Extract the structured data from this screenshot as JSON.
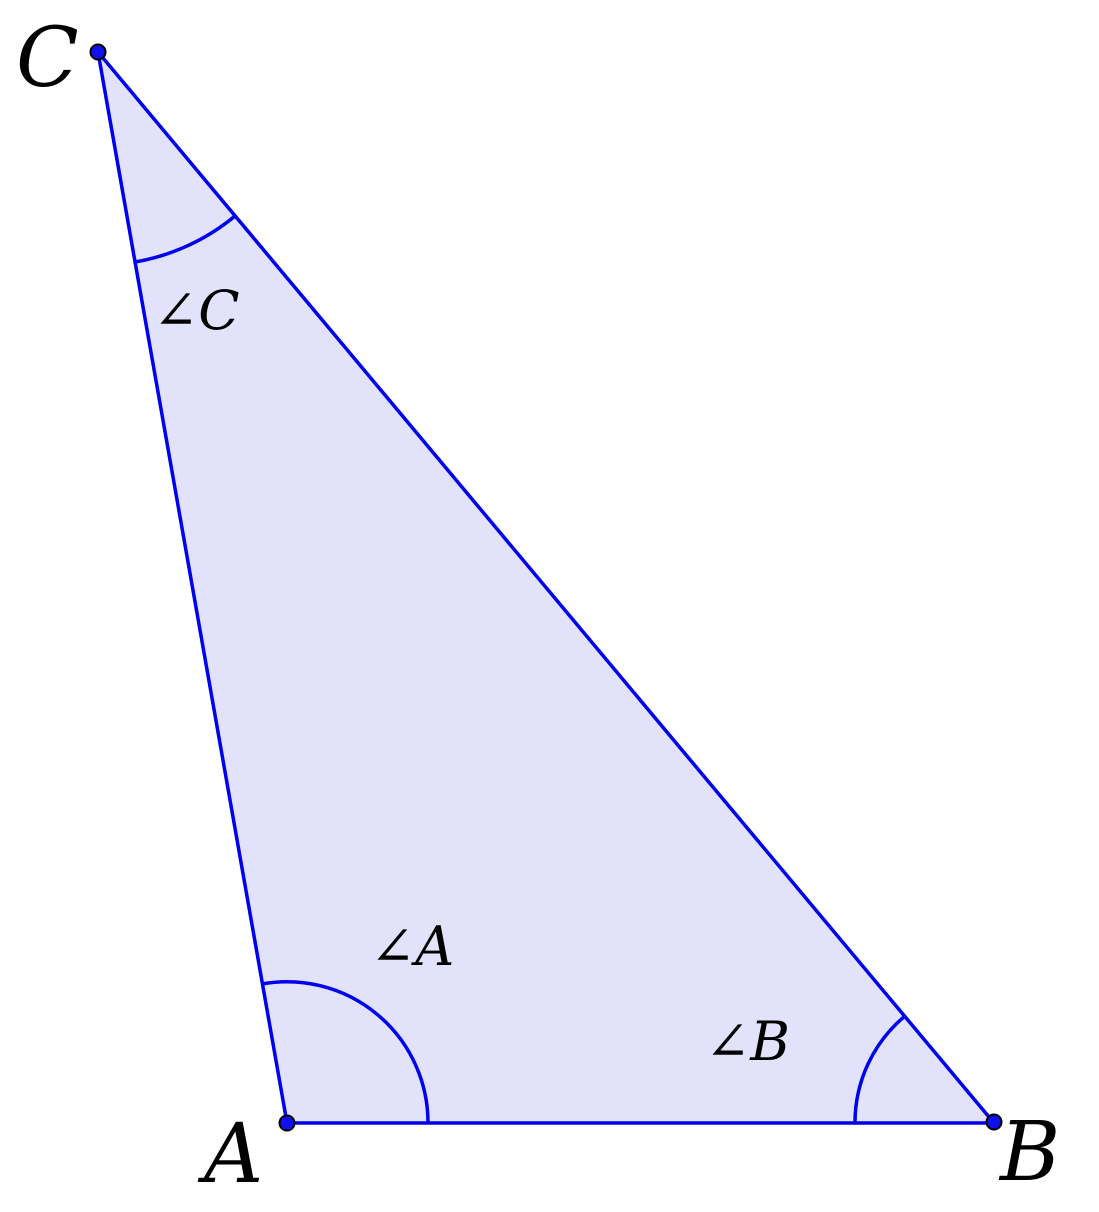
{
  "diagram": {
    "vertices": {
      "A": "A",
      "B": "B",
      "C": "C"
    },
    "angle_labels": {
      "A": "∠A",
      "B": "∠B",
      "C": "∠C"
    },
    "colors": {
      "stroke": "#0000ee",
      "fill": "#e2e2fb",
      "point_fill": "#1010ee",
      "text": "#000000"
    }
  }
}
